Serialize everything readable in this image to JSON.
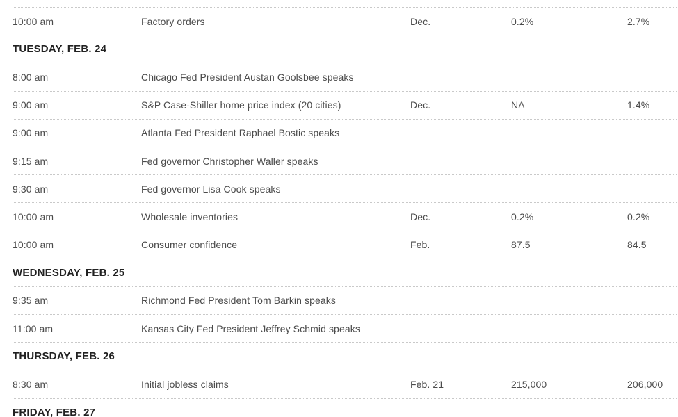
{
  "table": {
    "columns": [
      "time",
      "report",
      "period",
      "forecast",
      "previous"
    ],
    "rows": [
      {
        "type": "event",
        "time": "10:00 am",
        "report": "Factory orders",
        "period": "Dec.",
        "forecast": "0.2%",
        "previous": "2.7%"
      },
      {
        "type": "section",
        "label": "TUESDAY, FEB. 24"
      },
      {
        "type": "event",
        "time": "8:00 am",
        "report": "Chicago Fed President Austan Goolsbee speaks",
        "period": "",
        "forecast": "",
        "previous": ""
      },
      {
        "type": "event",
        "time": "9:00 am",
        "report": "S&P Case-Shiller home price index (20 cities)",
        "period": "Dec.",
        "forecast": "NA",
        "previous": "1.4%"
      },
      {
        "type": "event",
        "time": "9:00 am",
        "report": "Atlanta Fed President Raphael Bostic speaks",
        "period": "",
        "forecast": "",
        "previous": ""
      },
      {
        "type": "event",
        "time": "9:15 am",
        "report": "Fed governor Christopher Waller speaks",
        "period": "",
        "forecast": "",
        "previous": ""
      },
      {
        "type": "event",
        "time": "9:30 am",
        "report": "Fed governor Lisa Cook speaks",
        "period": "",
        "forecast": "",
        "previous": ""
      },
      {
        "type": "event",
        "time": "10:00 am",
        "report": "Wholesale inventories",
        "period": "Dec.",
        "forecast": "0.2%",
        "previous": "0.2%"
      },
      {
        "type": "event",
        "time": "10:00 am",
        "report": "Consumer confidence",
        "period": "Feb.",
        "forecast": "87.5",
        "previous": "84.5"
      },
      {
        "type": "section",
        "label": "WEDNESDAY, FEB. 25"
      },
      {
        "type": "event",
        "time": "9:35 am",
        "report": "Richmond Fed President Tom Barkin speaks",
        "period": "",
        "forecast": "",
        "previous": ""
      },
      {
        "type": "event",
        "time": "11:00 am",
        "report": "Kansas City Fed President Jeffrey Schmid speaks",
        "period": "",
        "forecast": "",
        "previous": ""
      },
      {
        "type": "section",
        "label": "THURSDAY, FEB. 26"
      },
      {
        "type": "event",
        "time": "8:30 am",
        "report": "Initial jobless claims",
        "period": "Feb. 21",
        "forecast": "215,000",
        "previous": "206,000"
      },
      {
        "type": "section",
        "label": "FRIDAY, FEB. 27"
      }
    ]
  },
  "colors": {
    "background": "#ffffff",
    "text": "#4b4b4b",
    "section_text": "#212121",
    "divider": "#c9c9c9"
  }
}
